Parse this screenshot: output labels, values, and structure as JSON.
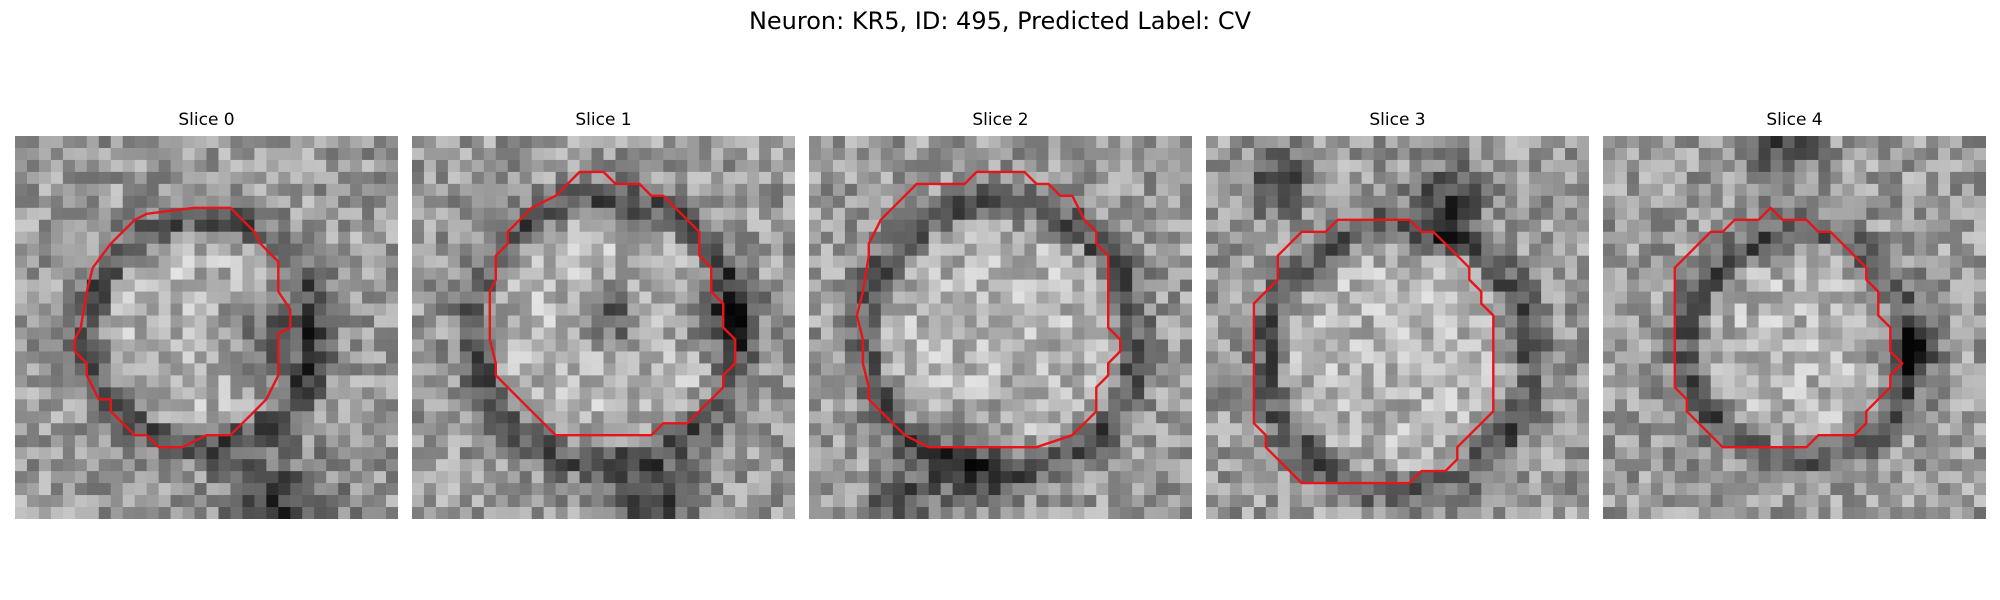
{
  "figure": {
    "title": "Neuron: KR5, ID: 495, Predicted Label: CV"
  },
  "panels": [
    {
      "title": "Slice 0",
      "contour_color": "#e8141a"
    },
    {
      "title": "Slice 1",
      "contour_color": "#e8141a"
    },
    {
      "title": "Slice 2",
      "contour_color": "#e8141a"
    },
    {
      "title": "Slice 3",
      "contour_color": "#e8141a"
    },
    {
      "title": "Slice 4",
      "contour_color": "#e8141a"
    }
  ],
  "colors": {
    "contour": "#e8141a",
    "background": "#ffffff"
  }
}
